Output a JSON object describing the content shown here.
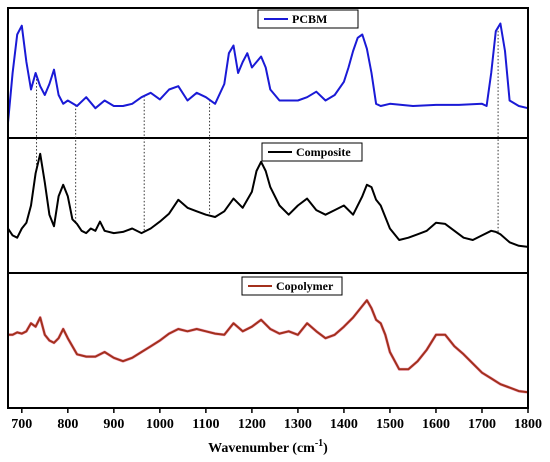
{
  "chart_data": {
    "type": "line",
    "layout": "three stacked panels sharing x axis",
    "xlabel": "Wavenumber (cm",
    "xlabel_sup": "-1",
    "xlabel_close": ")",
    "xlim": [
      670,
      1800
    ],
    "xticks": [
      700,
      800,
      900,
      1000,
      1100,
      1200,
      1300,
      1400,
      1500,
      1600,
      1700,
      1800
    ],
    "y_axis_shown": false,
    "grid": false,
    "reference_lines_x": [
      732,
      817,
      966,
      1108,
      1735
    ],
    "series": [
      {
        "name": "PCBM",
        "color": "#1a1ad6",
        "legend_position": "top-center",
        "x": [
          670,
          680,
          690,
          700,
          710,
          720,
          730,
          740,
          750,
          760,
          770,
          780,
          790,
          800,
          820,
          840,
          860,
          880,
          900,
          920,
          940,
          960,
          980,
          1000,
          1020,
          1040,
          1060,
          1080,
          1100,
          1120,
          1140,
          1150,
          1160,
          1170,
          1180,
          1190,
          1200,
          1210,
          1220,
          1230,
          1240,
          1260,
          1280,
          1300,
          1320,
          1340,
          1360,
          1380,
          1400,
          1410,
          1420,
          1430,
          1440,
          1450,
          1460,
          1470,
          1480,
          1500,
          1550,
          1600,
          1650,
          1700,
          1710,
          1720,
          1730,
          1740,
          1750,
          1760,
          1780,
          1800
        ],
        "y": [
          0.05,
          0.5,
          0.85,
          0.93,
          0.6,
          0.35,
          0.5,
          0.38,
          0.3,
          0.4,
          0.53,
          0.3,
          0.22,
          0.25,
          0.2,
          0.28,
          0.18,
          0.25,
          0.2,
          0.2,
          0.22,
          0.28,
          0.32,
          0.26,
          0.35,
          0.38,
          0.25,
          0.32,
          0.28,
          0.22,
          0.4,
          0.68,
          0.75,
          0.5,
          0.6,
          0.68,
          0.55,
          0.6,
          0.65,
          0.55,
          0.35,
          0.25,
          0.25,
          0.25,
          0.28,
          0.33,
          0.25,
          0.3,
          0.42,
          0.55,
          0.7,
          0.82,
          0.85,
          0.72,
          0.5,
          0.22,
          0.2,
          0.22,
          0.2,
          0.21,
          0.21,
          0.22,
          0.2,
          0.5,
          0.88,
          0.95,
          0.7,
          0.25,
          0.2,
          0.18
        ]
      },
      {
        "name": "Composite",
        "color": "#000000",
        "legend_position": "top-center",
        "x": [
          670,
          680,
          690,
          700,
          710,
          720,
          730,
          740,
          750,
          760,
          770,
          780,
          790,
          800,
          810,
          820,
          830,
          840,
          850,
          860,
          870,
          880,
          900,
          920,
          940,
          960,
          980,
          1000,
          1020,
          1040,
          1060,
          1080,
          1100,
          1120,
          1140,
          1160,
          1180,
          1200,
          1210,
          1220,
          1230,
          1240,
          1260,
          1280,
          1300,
          1320,
          1340,
          1360,
          1380,
          1400,
          1420,
          1440,
          1450,
          1460,
          1470,
          1480,
          1490,
          1500,
          1520,
          1540,
          1560,
          1580,
          1600,
          1620,
          1640,
          1660,
          1680,
          1700,
          1720,
          1730,
          1740,
          1760,
          1780,
          1800
        ],
        "y": [
          0.3,
          0.24,
          0.22,
          0.3,
          0.35,
          0.5,
          0.78,
          0.95,
          0.7,
          0.42,
          0.32,
          0.58,
          0.68,
          0.58,
          0.38,
          0.34,
          0.28,
          0.26,
          0.3,
          0.28,
          0.36,
          0.28,
          0.26,
          0.27,
          0.3,
          0.26,
          0.3,
          0.36,
          0.43,
          0.55,
          0.48,
          0.45,
          0.42,
          0.4,
          0.45,
          0.56,
          0.48,
          0.62,
          0.8,
          0.88,
          0.8,
          0.66,
          0.5,
          0.42,
          0.5,
          0.56,
          0.46,
          0.42,
          0.46,
          0.5,
          0.42,
          0.58,
          0.68,
          0.66,
          0.55,
          0.5,
          0.4,
          0.3,
          0.2,
          0.22,
          0.25,
          0.28,
          0.35,
          0.34,
          0.28,
          0.22,
          0.2,
          0.24,
          0.28,
          0.27,
          0.25,
          0.18,
          0.15,
          0.14
        ]
      },
      {
        "name": "Copolymer",
        "color": "#a3301c",
        "legend_position": "top-center",
        "x": [
          670,
          680,
          690,
          700,
          710,
          720,
          730,
          740,
          750,
          760,
          770,
          780,
          790,
          800,
          820,
          840,
          860,
          880,
          900,
          920,
          940,
          960,
          980,
          1000,
          1020,
          1040,
          1060,
          1080,
          1100,
          1120,
          1140,
          1160,
          1180,
          1200,
          1220,
          1240,
          1260,
          1280,
          1300,
          1320,
          1340,
          1360,
          1380,
          1400,
          1420,
          1440,
          1450,
          1460,
          1470,
          1480,
          1490,
          1500,
          1520,
          1540,
          1560,
          1580,
          1600,
          1620,
          1640,
          1660,
          1680,
          1700,
          1720,
          1740,
          1760,
          1780,
          1800
        ],
        "y": [
          0.55,
          0.55,
          0.57,
          0.56,
          0.58,
          0.65,
          0.62,
          0.7,
          0.55,
          0.5,
          0.48,
          0.52,
          0.6,
          0.52,
          0.38,
          0.36,
          0.36,
          0.4,
          0.35,
          0.32,
          0.35,
          0.4,
          0.45,
          0.5,
          0.56,
          0.6,
          0.58,
          0.6,
          0.58,
          0.56,
          0.55,
          0.65,
          0.58,
          0.62,
          0.68,
          0.6,
          0.56,
          0.58,
          0.55,
          0.65,
          0.58,
          0.52,
          0.55,
          0.62,
          0.7,
          0.8,
          0.85,
          0.78,
          0.68,
          0.65,
          0.55,
          0.4,
          0.25,
          0.25,
          0.32,
          0.42,
          0.55,
          0.55,
          0.45,
          0.38,
          0.3,
          0.22,
          0.17,
          0.12,
          0.09,
          0.06,
          0.05
        ]
      }
    ]
  }
}
